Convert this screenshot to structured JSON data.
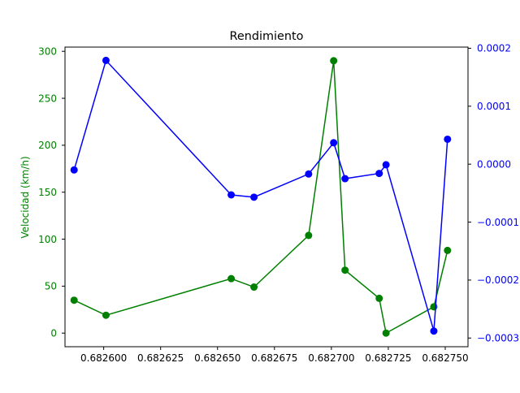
{
  "chart_data": {
    "type": "line",
    "title": "Rendimiento",
    "xlabel": "",
    "xlim": [
      0.682583,
      0.68276
    ],
    "x_ticks": [
      0.6826,
      0.682625,
      0.68265,
      0.682675,
      0.6827,
      0.682725,
      0.68275
    ],
    "x_tick_labels": [
      "0.682600",
      "0.682625",
      "0.682650",
      "0.682675",
      "0.682700",
      "0.682725",
      "0.682750"
    ],
    "left_axis": {
      "label": "Velocidad (km/h)",
      "color": "#008000",
      "ylim": [
        -14.5,
        304.5
      ],
      "ticks": [
        0,
        50,
        100,
        150,
        200,
        250,
        300
      ],
      "tick_labels": [
        "0",
        "50",
        "100",
        "150",
        "200",
        "250",
        "300"
      ]
    },
    "right_axis": {
      "label": "",
      "color": "#0000ff",
      "ylim": [
        -0.000315,
        0.000202
      ],
      "ticks": [
        -0.0003,
        -0.0002,
        -0.0001,
        0.0,
        0.0001,
        0.0002
      ],
      "tick_labels": [
        "−0.0003",
        "−0.0002",
        "−0.0001",
        "0.0000",
        "0.0001",
        "0.0002"
      ]
    },
    "series": [
      {
        "axis": "left",
        "color": "#008000",
        "points": [
          {
            "x": 0.682587,
            "y": 35
          },
          {
            "x": 0.682601,
            "y": 19
          },
          {
            "x": 0.682656,
            "y": 58
          },
          {
            "x": 0.682666,
            "y": 49
          },
          {
            "x": 0.68269,
            "y": 104
          },
          {
            "x": 0.682701,
            "y": 290
          },
          {
            "x": 0.682706,
            "y": 67
          },
          {
            "x": 0.682721,
            "y": 37
          },
          {
            "x": 0.682724,
            "y": 0
          },
          {
            "x": 0.682745,
            "y": 28
          },
          {
            "x": 0.682751,
            "y": 88
          }
        ]
      },
      {
        "axis": "right",
        "color": "#0000ff",
        "points": [
          {
            "x": 0.682587,
            "y": -1e-05
          },
          {
            "x": 0.682601,
            "y": 0.000179
          },
          {
            "x": 0.682656,
            "y": -5.3e-05
          },
          {
            "x": 0.682666,
            "y": -5.7e-05
          },
          {
            "x": 0.68269,
            "y": -1.7e-05
          },
          {
            "x": 0.682701,
            "y": 3.7e-05
          },
          {
            "x": 0.682706,
            "y": -2.5e-05
          },
          {
            "x": 0.682721,
            "y": -1.6e-05
          },
          {
            "x": 0.682724,
            "y": -1e-06
          },
          {
            "x": 0.682745,
            "y": -0.000288
          },
          {
            "x": 0.682751,
            "y": 4.3e-05
          }
        ]
      }
    ],
    "grid": false,
    "legend": "none"
  }
}
